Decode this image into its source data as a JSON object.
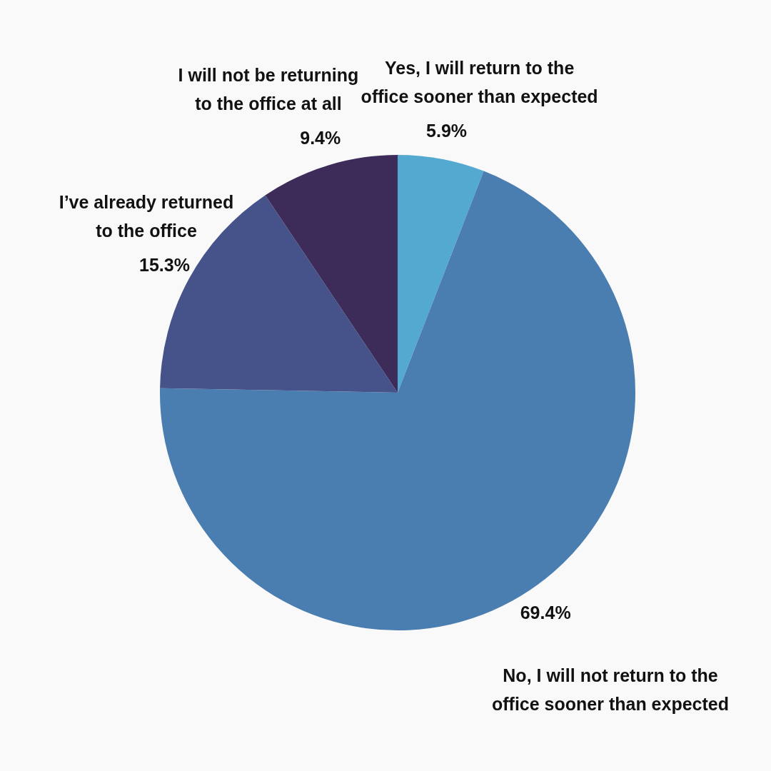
{
  "chart_data": {
    "type": "pie",
    "categories": [
      "Yes, I will return to the office sooner than expected",
      "No, I will not return to the office sooner than expected",
      "I’ve already returned to the office",
      "I will not be returning to the office at all"
    ],
    "values": [
      5.9,
      69.4,
      15.3,
      9.4
    ],
    "value_labels": [
      "5.9%",
      "69.4%",
      "15.3%",
      "9.4%"
    ],
    "colors": [
      "#54a9d0",
      "#4a7eb0",
      "#46538a",
      "#3d2b5a"
    ]
  }
}
